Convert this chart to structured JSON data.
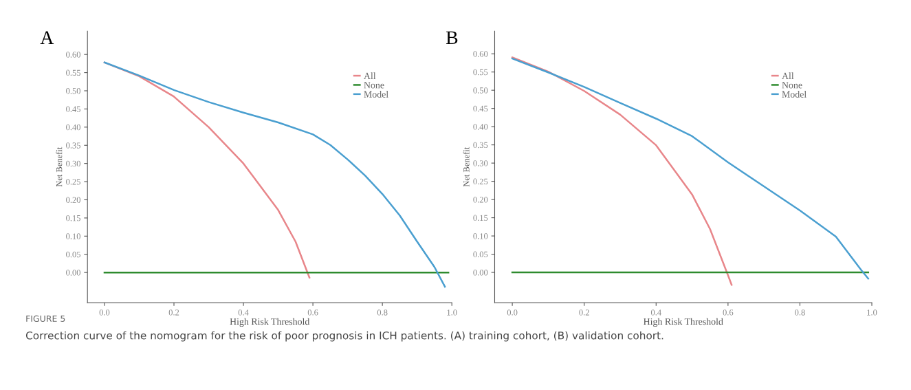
{
  "chart_data": [
    {
      "type": "line",
      "title": "A",
      "xlabel": "High Risk Threshold",
      "ylabel": "Net Benefit",
      "xlim": [
        -0.049,
        1.0
      ],
      "ylim": [
        -0.083,
        0.664
      ],
      "xticks": [
        {
          "value": 0.0,
          "label": "0.0"
        },
        {
          "value": 0.2,
          "label": "0.2"
        },
        {
          "value": 0.4,
          "label": "0.4"
        },
        {
          "value": 0.6,
          "label": "0.6"
        },
        {
          "value": 0.8,
          "label": "0.8"
        },
        {
          "value": 1.0,
          "label": "1.0"
        }
      ],
      "yticks": [
        {
          "value": 0.0,
          "label": "0.00"
        },
        {
          "value": 0.05,
          "label": "0.05"
        },
        {
          "value": 0.1,
          "label": "0.10"
        },
        {
          "value": 0.15,
          "label": "0.15"
        },
        {
          "value": 0.2,
          "label": "0.20"
        },
        {
          "value": 0.25,
          "label": "0.25"
        },
        {
          "value": 0.3,
          "label": "0.30"
        },
        {
          "value": 0.35,
          "label": "0.35"
        },
        {
          "value": 0.4,
          "label": "0.40"
        },
        {
          "value": 0.45,
          "label": "0.45"
        },
        {
          "value": 0.5,
          "label": "0.50"
        },
        {
          "value": 0.55,
          "label": "0.55"
        },
        {
          "value": 0.6,
          "label": "0.60"
        }
      ],
      "grid": false,
      "legend": "top right",
      "marker": "none",
      "line_style": "solid",
      "series": [
        {
          "name": "All",
          "color": "#e8868a",
          "x": [
            0,
            0.1,
            0.2,
            0.3,
            0.4,
            0.5,
            0.55,
            0.59
          ],
          "values": [
            0.578,
            0.54,
            0.484,
            0.4,
            0.3,
            0.172,
            0.085,
            -0.014
          ]
        },
        {
          "name": "None",
          "color": "#2e8b2e",
          "x": [
            0,
            0.99
          ],
          "values": [
            0,
            0
          ]
        },
        {
          "name": "Model",
          "color": "#4a9fd0",
          "x": [
            0,
            0.1,
            0.2,
            0.3,
            0.4,
            0.5,
            0.6,
            0.65,
            0.7,
            0.75,
            0.8,
            0.85,
            0.9,
            0.95,
            0.98
          ],
          "values": [
            0.578,
            0.542,
            0.502,
            0.469,
            0.44,
            0.413,
            0.38,
            0.351,
            0.311,
            0.267,
            0.216,
            0.157,
            0.085,
            0.015,
            -0.039
          ]
        }
      ],
      "annotations": [
        "FIGURE 5",
        "Correction curve of the nomogram for the risk of poor prognosis in ICH patients. (A) training cohort, (B) validation cohort."
      ]
    },
    {
      "type": "line",
      "title": "B",
      "xlabel": "High Risk Threshold",
      "ylabel": "Net Benefit",
      "xlim": [
        -0.049,
        1.0
      ],
      "ylim": [
        -0.083,
        0.662
      ],
      "xticks": [
        {
          "value": 0.0,
          "label": "0.0"
        },
        {
          "value": 0.2,
          "label": "0.2"
        },
        {
          "value": 0.4,
          "label": "0.4"
        },
        {
          "value": 0.6,
          "label": "0.6"
        },
        {
          "value": 0.8,
          "label": "0.8"
        },
        {
          "value": 1.0,
          "label": "1.0"
        }
      ],
      "yticks": [
        {
          "value": 0.0,
          "label": "0.00"
        },
        {
          "value": 0.05,
          "label": "0.05"
        },
        {
          "value": 0.1,
          "label": "0.10"
        },
        {
          "value": 0.15,
          "label": "0.15"
        },
        {
          "value": 0.2,
          "label": "0.20"
        },
        {
          "value": 0.25,
          "label": "0.25"
        },
        {
          "value": 0.3,
          "label": "0.30"
        },
        {
          "value": 0.35,
          "label": "0.35"
        },
        {
          "value": 0.4,
          "label": "0.40"
        },
        {
          "value": 0.45,
          "label": "0.45"
        },
        {
          "value": 0.5,
          "label": "0.50"
        },
        {
          "value": 0.55,
          "label": "0.55"
        },
        {
          "value": 0.6,
          "label": "0.60"
        }
      ],
      "grid": false,
      "legend": "top right",
      "marker": "none",
      "line_style": "solid",
      "series": [
        {
          "name": "All",
          "color": "#e8868a",
          "x": [
            0,
            0.1,
            0.2,
            0.3,
            0.4,
            0.5,
            0.55,
            0.6,
            0.61
          ],
          "values": [
            0.59,
            0.551,
            0.498,
            0.433,
            0.349,
            0.214,
            0.119,
            -0.008,
            -0.034
          ]
        },
        {
          "name": "None",
          "color": "#2e8b2e",
          "x": [
            0,
            0.99
          ],
          "values": [
            0,
            0
          ]
        },
        {
          "name": "Model",
          "color": "#4a9fd0",
          "x": [
            0,
            0.1,
            0.2,
            0.3,
            0.4,
            0.5,
            0.6,
            0.7,
            0.8,
            0.9,
            0.97,
            0.99
          ],
          "values": [
            0.587,
            0.549,
            0.509,
            0.465,
            0.422,
            0.374,
            0.302,
            0.236,
            0.17,
            0.098,
            0.007,
            -0.017
          ]
        }
      ]
    }
  ]
}
